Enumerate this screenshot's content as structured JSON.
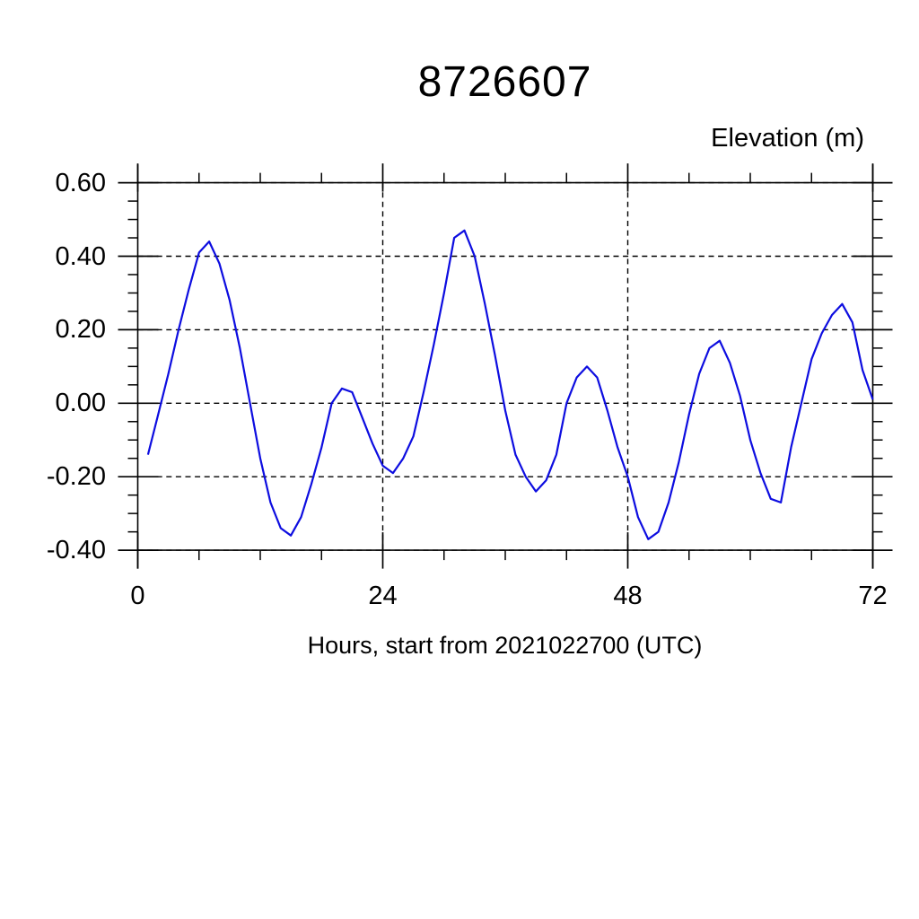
{
  "page": {
    "background": "#ffffff"
  },
  "chart_data": {
    "type": "line",
    "title": "8726607",
    "ylabel": "Elevation (m)",
    "xlabel": "Hours, start from 2021022700 (UTC)",
    "x_ticks": [
      0,
      24,
      48,
      72
    ],
    "x_tick_labels": [
      "0",
      "24",
      "48",
      "72"
    ],
    "x_minor_step": 6,
    "y_ticks": [
      0.6,
      0.4,
      0.2,
      0.0,
      -0.2,
      -0.4
    ],
    "y_tick_labels": [
      "0.60",
      "0.40",
      "0.20",
      "0.00",
      "-0.20",
      "-0.40"
    ],
    "y_minor_step": 0.05,
    "xlim": [
      0,
      72
    ],
    "ylim": [
      -0.45,
      0.65
    ],
    "grid": "dashed-at-major-ticks",
    "legend": "none",
    "axis_color": "#000000",
    "series": [
      {
        "name": "elevation",
        "color": "#0d0de0",
        "x_start": 1,
        "x_step": 1,
        "values": [
          -0.14,
          -0.03,
          0.08,
          0.2,
          0.31,
          0.41,
          0.44,
          0.38,
          0.28,
          0.15,
          0.0,
          -0.15,
          -0.27,
          -0.34,
          -0.36,
          -0.31,
          -0.22,
          -0.12,
          0.0,
          0.04,
          0.03,
          -0.04,
          -0.11,
          -0.17,
          -0.19,
          -0.15,
          -0.09,
          0.03,
          0.16,
          0.3,
          0.45,
          0.47,
          0.4,
          0.27,
          0.13,
          -0.02,
          -0.14,
          -0.2,
          -0.24,
          -0.21,
          -0.14,
          0.0,
          0.07,
          0.1,
          0.07,
          -0.02,
          -0.12,
          -0.2,
          -0.31,
          -0.37,
          -0.35,
          -0.27,
          -0.16,
          -0.03,
          0.08,
          0.15,
          0.17,
          0.11,
          0.02,
          -0.1,
          -0.19,
          -0.26,
          -0.27,
          -0.12,
          0.0,
          0.12,
          0.19,
          0.24,
          0.27,
          0.22,
          0.09,
          0.01
        ]
      }
    ]
  }
}
